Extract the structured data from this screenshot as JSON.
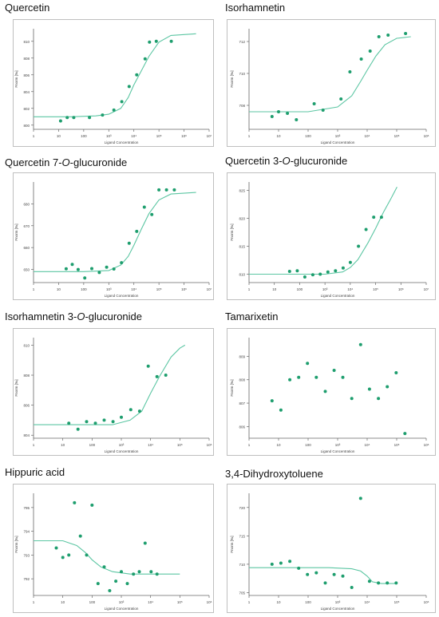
{
  "style": {
    "point_color": "#1e9e6e",
    "curve_color": "#5cc6a3",
    "axis_color": "#666666",
    "frame_color": "#bfbfbf"
  },
  "chart_data": [
    {
      "id": "p1",
      "type": "scatter",
      "title": "Quercetin",
      "title_parts": [
        "Quercetin"
      ],
      "xlabel": "Ligand Concentration",
      "ylabel": "Fnorm [‰]",
      "x_scale": "log",
      "xlim": [
        1,
        10000000
      ],
      "ylim": [
        799.5,
        811.5
      ],
      "yticks": [
        800,
        802,
        804,
        806,
        808,
        810
      ],
      "xticks": [
        {
          "v": 1,
          "l": "1"
        },
        {
          "v": 10,
          "l": "10"
        },
        {
          "v": 100,
          "l": "100"
        },
        {
          "v": 1000,
          "l": "10³"
        },
        {
          "v": 10000,
          "l": "10⁴"
        },
        {
          "v": 100000,
          "l": "10⁵"
        },
        {
          "v": 1000000,
          "l": "10⁶"
        },
        {
          "v": 10000000,
          "l": "10⁷"
        }
      ],
      "x": [
        12,
        22,
        40,
        170,
        560,
        1600,
        3300,
        6500,
        13000,
        28000,
        42000,
        78000,
        310000
      ],
      "y": [
        800.5,
        800.9,
        800.9,
        800.9,
        801.2,
        801.8,
        802.8,
        804.6,
        806.0,
        807.9,
        809.9,
        810.0,
        810.0
      ],
      "curve": [
        [
          1,
          801.0
        ],
        [
          30,
          801.0
        ],
        [
          300,
          801.1
        ],
        [
          1000,
          801.3
        ],
        [
          3000,
          802.0
        ],
        [
          6000,
          803.3
        ],
        [
          10000,
          804.8
        ],
        [
          20000,
          806.5
        ],
        [
          40000,
          808.2
        ],
        [
          100000,
          809.9
        ],
        [
          300000,
          810.7
        ],
        [
          3000000,
          810.9
        ]
      ]
    },
    {
      "id": "p2",
      "type": "scatter",
      "title": "Isorhamnetin",
      "title_parts": [
        "Isorhamnetin"
      ],
      "xlabel": "Ligand Concentration",
      "ylabel": "Fnorm [‰]",
      "x_scale": "log",
      "xlim": [
        1,
        1000000
      ],
      "ylim": [
        706.5,
        712.8
      ],
      "yticks": [
        708,
        710,
        712
      ],
      "xticks": [
        {
          "v": 1,
          "l": "1"
        },
        {
          "v": 10,
          "l": "10"
        },
        {
          "v": 100,
          "l": "100"
        },
        {
          "v": 1000,
          "l": "10³"
        },
        {
          "v": 10000,
          "l": "10⁴"
        },
        {
          "v": 100000,
          "l": "10⁵"
        },
        {
          "v": 1000000,
          "l": "10⁶"
        }
      ],
      "x": [
        6,
        10,
        20,
        40,
        160,
        320,
        1300,
        2600,
        6300,
        12600,
        25000,
        51000,
        200000
      ],
      "y": [
        707.3,
        707.6,
        707.5,
        707.1,
        708.1,
        707.7,
        708.4,
        710.1,
        710.9,
        711.4,
        712.3,
        712.4,
        712.5
      ],
      "curve": [
        [
          1,
          707.6
        ],
        [
          100,
          707.6
        ],
        [
          1000,
          707.9
        ],
        [
          3000,
          708.6
        ],
        [
          6000,
          709.5
        ],
        [
          10000,
          710.2
        ],
        [
          20000,
          711.1
        ],
        [
          40000,
          711.8
        ],
        [
          100000,
          712.2
        ],
        [
          300000,
          712.3
        ]
      ]
    },
    {
      "id": "p3",
      "type": "scatter",
      "title": "Quercetin 7-O-glucuronide",
      "title_parts": [
        "Quercetin 7-",
        "O",
        "-glucuronide"
      ],
      "xlabel": "Ligand Concentration",
      "ylabel": "Fnorm [‰]",
      "x_scale": "log",
      "xlim": [
        1,
        10000000
      ],
      "ylim": [
        644,
        690
      ],
      "yticks": [
        650,
        660,
        670,
        680
      ],
      "xticks": [
        {
          "v": 1,
          "l": "1"
        },
        {
          "v": 10,
          "l": "10"
        },
        {
          "v": 100,
          "l": "100"
        },
        {
          "v": 1000,
          "l": "10³"
        },
        {
          "v": 10000,
          "l": "10⁴"
        },
        {
          "v": 100000,
          "l": "10⁵"
        },
        {
          "v": 1000000,
          "l": "10⁶"
        },
        {
          "v": 10000000,
          "l": "10⁷"
        }
      ],
      "x": [
        20,
        35,
        60,
        110,
        210,
        420,
        820,
        1600,
        3200,
        6500,
        13000,
        26000,
        52000,
        100000,
        200000,
        410000
      ],
      "y": [
        650.3,
        652.3,
        650.0,
        646.1,
        650.4,
        648.6,
        651.0,
        650.2,
        653.1,
        662.0,
        667.4,
        678.5,
        675.1,
        686.4,
        686.4,
        686.4
      ],
      "curve": [
        [
          1,
          649.0
        ],
        [
          100,
          649.0
        ],
        [
          1000,
          649.5
        ],
        [
          3000,
          652.0
        ],
        [
          6000,
          656.0
        ],
        [
          10000,
          661.0
        ],
        [
          20000,
          668.5
        ],
        [
          40000,
          675.5
        ],
        [
          100000,
          681.8
        ],
        [
          300000,
          684.5
        ],
        [
          3000000,
          685.2
        ]
      ]
    },
    {
      "id": "p4",
      "type": "scatter",
      "title": "Quercetin 3-O-glucuronide",
      "title_parts": [
        "Quercetin 3-",
        "O",
        "-glucuronide"
      ],
      "xlabel": "Ligand Concentration",
      "ylabel": "Fnorm [‰]",
      "x_scale": "log",
      "xlim": [
        1,
        10000000
      ],
      "ylim": [
        808.5,
        826.5
      ],
      "yticks": [
        810,
        815,
        820,
        825
      ],
      "xticks": [
        {
          "v": 1,
          "l": "1"
        },
        {
          "v": 10,
          "l": "10"
        },
        {
          "v": 100,
          "l": "100"
        },
        {
          "v": 1000,
          "l": "10³"
        },
        {
          "v": 10000,
          "l": "10⁴"
        },
        {
          "v": 100000,
          "l": "10⁵"
        },
        {
          "v": 1000000,
          "l": "10⁶"
        },
        {
          "v": 10000000,
          "l": "10⁷"
        }
      ],
      "x": [
        40,
        80,
        160,
        330,
        650,
        1300,
        2600,
        5200,
        10000,
        21000,
        42000,
        84000,
        170000
      ],
      "y": [
        810.5,
        810.6,
        809.5,
        809.9,
        810.0,
        810.4,
        810.6,
        811.1,
        812.1,
        815.0,
        818.0,
        820.2,
        820.2
      ],
      "curve": [
        [
          1,
          810.0
        ],
        [
          1000,
          810.0
        ],
        [
          5000,
          810.4
        ],
        [
          10000,
          811.2
        ],
        [
          20000,
          812.6
        ],
        [
          50000,
          815.6
        ],
        [
          100000,
          818.2
        ],
        [
          200000,
          821.0
        ],
        [
          400000,
          823.5
        ],
        [
          700000,
          825.6
        ]
      ]
    },
    {
      "id": "p5",
      "type": "scatter",
      "title": "Isorhamnetin 3-O-glucuronide",
      "title_parts": [
        "Isorhamnetin 3-",
        "O",
        "-glucuronide"
      ],
      "xlabel": "Ligand Concentration",
      "ylabel": "Fnorm [‰]",
      "x_scale": "log",
      "xlim": [
        1,
        1000000
      ],
      "ylim": [
        803.8,
        810.5
      ],
      "yticks": [
        804,
        806,
        808,
        810
      ],
      "xticks": [
        {
          "v": 1,
          "l": "1"
        },
        {
          "v": 10,
          "l": "10"
        },
        {
          "v": 100,
          "l": "100"
        },
        {
          "v": 1000,
          "l": "10³"
        },
        {
          "v": 10000,
          "l": "10⁴"
        },
        {
          "v": 100000,
          "l": "10⁵"
        },
        {
          "v": 1000000,
          "l": "10⁶"
        }
      ],
      "x": [
        16,
        33,
        65,
        130,
        260,
        520,
        1000,
        2100,
        4200,
        8300,
        16600,
        33000
      ],
      "y": [
        804.8,
        804.4,
        804.9,
        804.8,
        805.0,
        804.9,
        805.2,
        805.7,
        805.6,
        808.6,
        807.9,
        808.0
      ],
      "curve": [
        [
          1,
          804.7
        ],
        [
          500,
          804.7
        ],
        [
          2000,
          805.0
        ],
        [
          5000,
          805.6
        ],
        [
          10000,
          806.8
        ],
        [
          20000,
          807.9
        ],
        [
          50000,
          809.2
        ],
        [
          100000,
          809.8
        ],
        [
          150000,
          810.0
        ]
      ]
    },
    {
      "id": "p6",
      "type": "scatter",
      "title": "Tamarixetin",
      "title_parts": [
        "Tamarixetin"
      ],
      "xlabel": "Ligand Concentration",
      "ylabel": "Fnorm [‰]",
      "x_scale": "log",
      "xlim": [
        1,
        1000000
      ],
      "ylim": [
        805.5,
        809.8
      ],
      "yticks": [
        806,
        807,
        808,
        809
      ],
      "xticks": [
        {
          "v": 1,
          "l": "1"
        },
        {
          "v": 10,
          "l": "10"
        },
        {
          "v": 100,
          "l": "100"
        },
        {
          "v": 1000,
          "l": "10³"
        },
        {
          "v": 10000,
          "l": "10⁴"
        },
        {
          "v": 100000,
          "l": "10⁵"
        },
        {
          "v": 1000000,
          "l": "10⁶"
        }
      ],
      "x": [
        6,
        12,
        24,
        48,
        95,
        190,
        380,
        760,
        1500,
        3000,
        6000,
        12000,
        24000,
        48000,
        96000,
        190000
      ],
      "y": [
        807.1,
        806.7,
        808.0,
        808.1,
        808.7,
        808.1,
        807.5,
        808.4,
        808.1,
        807.2,
        809.5,
        807.6,
        807.2,
        807.7,
        808.3,
        805.7
      ],
      "curve": []
    },
    {
      "id": "p7",
      "type": "scatter",
      "title": "Hippuric acid",
      "title_parts": [
        "Hippuric acid"
      ],
      "xlabel": "Ligand Concentration",
      "ylabel": "Fnorm [‰]",
      "x_scale": "log",
      "xlim": [
        1,
        1000000
      ],
      "ylim": [
        791.3,
        795.6
      ],
      "yticks": [
        792,
        793,
        794,
        795
      ],
      "xticks": [
        {
          "v": 1,
          "l": "1"
        },
        {
          "v": 10,
          "l": "10"
        },
        {
          "v": 100,
          "l": "100"
        },
        {
          "v": 1000,
          "l": "10³"
        },
        {
          "v": 10000,
          "l": "10⁴"
        },
        {
          "v": 100000,
          "l": "10⁵"
        },
        {
          "v": 1000000,
          "l": "10⁶"
        }
      ],
      "x": [
        6,
        10,
        16,
        25,
        40,
        65,
        100,
        160,
        260,
        400,
        650,
        1000,
        1600,
        2600,
        4100,
        6500,
        10400,
        16600
      ],
      "y": [
        793.3,
        792.9,
        793.0,
        795.2,
        793.8,
        793.0,
        795.1,
        791.8,
        792.5,
        791.5,
        791.9,
        792.3,
        791.8,
        792.2,
        792.3,
        793.5,
        792.3,
        792.2
      ],
      "curve": [
        [
          1,
          793.6
        ],
        [
          10,
          793.6
        ],
        [
          30,
          793.4
        ],
        [
          60,
          793.1
        ],
        [
          100,
          792.8
        ],
        [
          200,
          792.5
        ],
        [
          500,
          792.3
        ],
        [
          2000,
          792.2
        ],
        [
          100000,
          792.2
        ]
      ]
    },
    {
      "id": "p8",
      "type": "scatter",
      "title": "3,4-Dihydroxytoluene",
      "title_parts": [
        "3,4-Dihydroxytoluene"
      ],
      "xlabel": "Ligand Concentration",
      "ylabel": "Fnorm [‰]",
      "x_scale": "log",
      "xlim": [
        1,
        1000000
      ],
      "ylim": [
        704.5,
        722.5
      ],
      "yticks": [
        705,
        710,
        715,
        720
      ],
      "xticks": [
        {
          "v": 1,
          "l": "1"
        },
        {
          "v": 10,
          "l": "10"
        },
        {
          "v": 100,
          "l": "100"
        },
        {
          "v": 1000,
          "l": "10³"
        },
        {
          "v": 10000,
          "l": "10⁴"
        },
        {
          "v": 100000,
          "l": "10⁵"
        },
        {
          "v": 1000000,
          "l": "10⁶"
        }
      ],
      "x": [
        6,
        12,
        24,
        48,
        95,
        190,
        380,
        760,
        1500,
        3000,
        6000,
        12000,
        24000,
        48000,
        96000
      ],
      "y": [
        710.0,
        710.2,
        710.5,
        709.3,
        708.2,
        708.5,
        706.7,
        708.2,
        707.9,
        705.9,
        721.6,
        707.0,
        706.7,
        706.7,
        706.7
      ],
      "curve": [
        [
          1,
          709.4
        ],
        [
          500,
          709.4
        ],
        [
          3000,
          709.2
        ],
        [
          6000,
          708.8
        ],
        [
          10000,
          707.9
        ],
        [
          15000,
          706.9
        ],
        [
          30000,
          706.6
        ],
        [
          100000,
          706.6
        ]
      ]
    }
  ]
}
